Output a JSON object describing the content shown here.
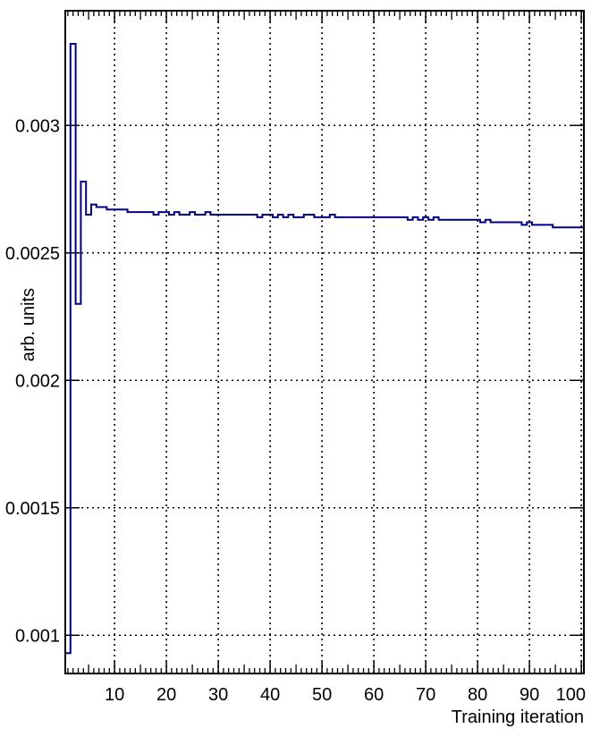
{
  "chart_data": {
    "type": "line",
    "drawstyle": "steps",
    "xlabel": "Training iteration",
    "ylabel": "arb. units",
    "xlim": [
      0.5,
      100.5
    ],
    "ylim": [
      0.00085,
      0.00345
    ],
    "grid": true,
    "x_ticks": [
      10,
      20,
      30,
      40,
      50,
      60,
      70,
      80,
      90,
      100
    ],
    "x_tick_labels": [
      "10",
      "20",
      "30",
      "40",
      "50",
      "60",
      "70",
      "80",
      "90",
      "100"
    ],
    "y_ticks": [
      0.001,
      0.0015,
      0.002,
      0.0025,
      0.003
    ],
    "y_tick_labels": [
      "0.001",
      "0.0015",
      "0.002",
      "0.0025",
      "0.003"
    ],
    "line_color": "#000080",
    "series": [
      {
        "x": [
          1,
          2,
          3,
          4,
          5,
          6,
          7,
          8,
          9,
          10,
          11,
          12,
          13,
          14,
          15,
          16,
          17,
          18,
          19,
          20,
          21,
          22,
          23,
          24,
          25,
          26,
          27,
          28,
          29,
          30,
          31,
          32,
          33,
          34,
          35,
          36,
          37,
          38,
          39,
          40,
          41,
          42,
          43,
          44,
          45,
          46,
          47,
          48,
          49,
          50,
          51,
          52,
          53,
          54,
          55,
          56,
          57,
          58,
          59,
          60,
          61,
          62,
          63,
          64,
          65,
          66,
          67,
          68,
          69,
          70,
          71,
          72,
          73,
          74,
          75,
          76,
          77,
          78,
          79,
          80,
          81,
          82,
          83,
          84,
          85,
          86,
          87,
          88,
          89,
          90,
          91,
          92,
          93,
          94,
          95,
          96,
          97,
          98,
          99,
          100
        ],
        "values": [
          0.00093,
          0.00332,
          0.0023,
          0.00278,
          0.00265,
          0.00269,
          0.00268,
          0.00268,
          0.00267,
          0.00267,
          0.00267,
          0.00267,
          0.00266,
          0.00266,
          0.00266,
          0.00266,
          0.00266,
          0.00265,
          0.00266,
          0.00266,
          0.00265,
          0.00266,
          0.00265,
          0.00265,
          0.00266,
          0.00265,
          0.00265,
          0.00266,
          0.00265,
          0.00265,
          0.00265,
          0.00265,
          0.00265,
          0.00265,
          0.00265,
          0.00265,
          0.00265,
          0.00264,
          0.00265,
          0.00265,
          0.00264,
          0.00265,
          0.00264,
          0.00265,
          0.00264,
          0.00264,
          0.00265,
          0.00265,
          0.00264,
          0.00264,
          0.00264,
          0.00265,
          0.00264,
          0.00264,
          0.00264,
          0.00264,
          0.00264,
          0.00264,
          0.00264,
          0.00264,
          0.00264,
          0.00264,
          0.00264,
          0.00264,
          0.00264,
          0.00264,
          0.00263,
          0.00264,
          0.00263,
          0.00264,
          0.00263,
          0.00264,
          0.00263,
          0.00263,
          0.00263,
          0.00263,
          0.00263,
          0.00263,
          0.00263,
          0.00263,
          0.00262,
          0.00263,
          0.00262,
          0.00262,
          0.00262,
          0.00262,
          0.00262,
          0.00262,
          0.00261,
          0.00262,
          0.00261,
          0.00261,
          0.00261,
          0.00261,
          0.0026,
          0.0026,
          0.0026,
          0.0026,
          0.0026,
          0.0026
        ]
      }
    ]
  }
}
